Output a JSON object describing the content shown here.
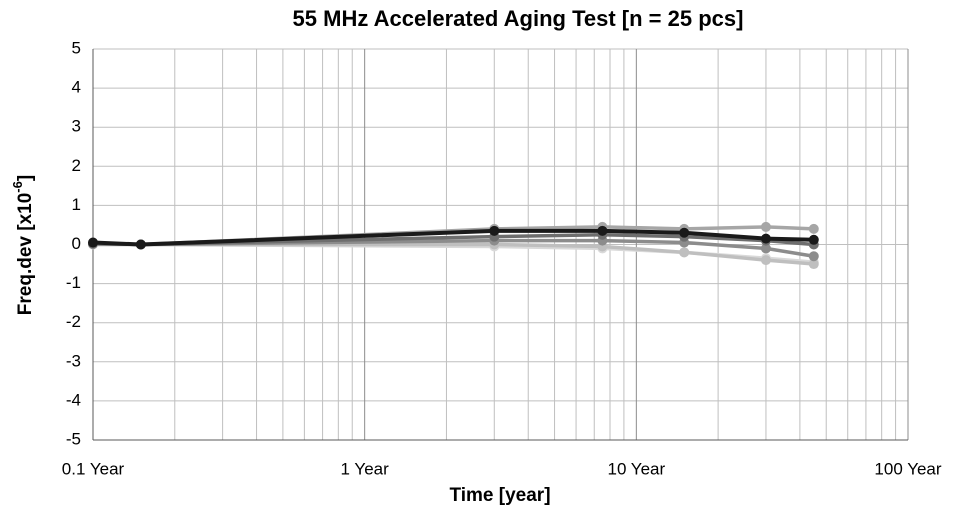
{
  "chart_data": {
    "type": "line",
    "title": "55 MHz Accelerated Aging Test [n = 25 pcs]",
    "x_label": "Time  [year]",
    "y_label": {
      "text": "Freq.dev  [x10",
      "superscript": "-6",
      "suffix": "]"
    },
    "x": [
      0.1,
      0.15,
      3,
      7.5,
      15,
      30,
      45
    ],
    "xscale": "log",
    "xlim": [
      0.1,
      100
    ],
    "xticks": [
      {
        "value": 0.1,
        "label": "0.1 Year"
      },
      {
        "value": 1,
        "label": "1 Year"
      },
      {
        "value": 10,
        "label": "10 Year"
      },
      {
        "value": 100,
        "label": "100 Year"
      }
    ],
    "ylim": [
      -5,
      5
    ],
    "yticks": [
      -5,
      -4,
      -3,
      -2,
      -1,
      0,
      1,
      2,
      3,
      4,
      5
    ],
    "grid": true,
    "series": [
      {
        "color": "#d9d9d9",
        "values": [
          0,
          0,
          -0.05,
          -0.1,
          -0.2,
          -0.35,
          -0.45
        ]
      },
      {
        "color": "#bfbfbf",
        "values": [
          0,
          0,
          0,
          -0.05,
          -0.2,
          -0.4,
          -0.5
        ]
      },
      {
        "color": "#a6a6a6",
        "values": [
          0.02,
          0,
          0.4,
          0.45,
          0.4,
          0.45,
          0.4
        ]
      },
      {
        "color": "#8c8c8c",
        "values": [
          0.03,
          0,
          0.1,
          0.1,
          0.05,
          -0.1,
          -0.3
        ]
      },
      {
        "color": "#6e6e6e",
        "values": [
          0.02,
          0,
          0.2,
          0.25,
          0.2,
          0.1,
          0
        ]
      },
      {
        "color": "#1a1a1a",
        "values": [
          0.05,
          0,
          0.35,
          0.35,
          0.3,
          0.15,
          0.12
        ]
      }
    ]
  }
}
